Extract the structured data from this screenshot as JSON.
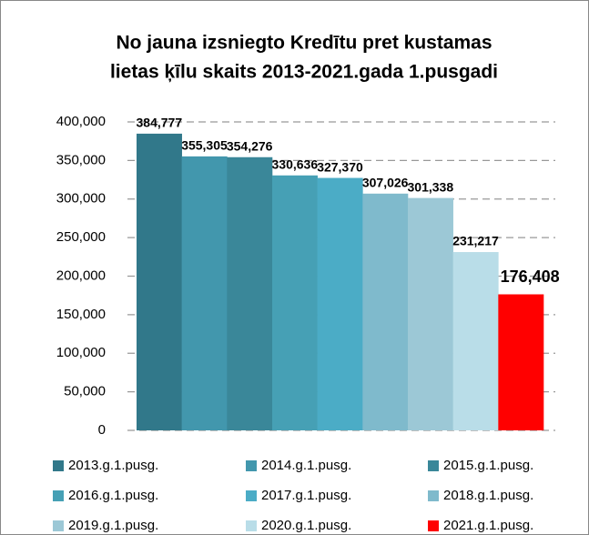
{
  "chart_data": {
    "type": "bar",
    "title": [
      "No jauna izsniegto Kredītu pret kustamas",
      "lietas ķīlu skaits 2013-2021.gada 1.pusgadi"
    ],
    "series": [
      {
        "name": "2013.g.1.pusg.",
        "color": "#31788a",
        "values": [
          384777
        ],
        "value_labels": [
          "384,777"
        ]
      },
      {
        "name": "2014.g.1.pusg.",
        "color": "#4297ad",
        "values": [
          355305
        ],
        "value_labels": [
          "355,305"
        ]
      },
      {
        "name": "2015.g.1.pusg.",
        "color": "#3a8799",
        "values": [
          354276
        ],
        "value_labels": [
          "354,276"
        ]
      },
      {
        "name": "2016.g.1.pusg.",
        "color": "#46a0b5",
        "values": [
          330636
        ],
        "value_labels": [
          "330,636"
        ]
      },
      {
        "name": "2017.g.1.pusg.",
        "color": "#4bacc6",
        "values": [
          327370
        ],
        "value_labels": [
          "327,370"
        ]
      },
      {
        "name": "2018.g.1.pusg.",
        "color": "#7fbacc",
        "values": [
          307026
        ],
        "value_labels": [
          "307,026"
        ]
      },
      {
        "name": "2019.g.1.pusg.",
        "color": "#9cc8d6",
        "values": [
          301338
        ],
        "value_labels": [
          "301,338"
        ]
      },
      {
        "name": "2020.g.1.pusg.",
        "color": "#b9dde8",
        "values": [
          231217
        ],
        "value_labels": [
          "231,217"
        ]
      },
      {
        "name": "2021.g.1.pusg.",
        "color": "#ff0000",
        "values": [
          176408
        ],
        "value_labels": [
          "176,408"
        ]
      }
    ],
    "ylim": [
      0,
      400000
    ],
    "yticks": [
      0,
      {
        "value": 50000,
        "label": "50,000"
      },
      {
        "value": 100000,
        "label": "100,000"
      },
      {
        "value": 150000,
        "label": "150,000"
      },
      {
        "value": 200000,
        "label": "200,000"
      },
      {
        "value": 250000,
        "label": "250,000"
      },
      {
        "value": 300000,
        "label": "300,000"
      },
      {
        "value": 350000,
        "label": "350,000"
      },
      {
        "value": 400000,
        "label": "400,000"
      }
    ],
    "grid": true,
    "legend": "bottom"
  }
}
